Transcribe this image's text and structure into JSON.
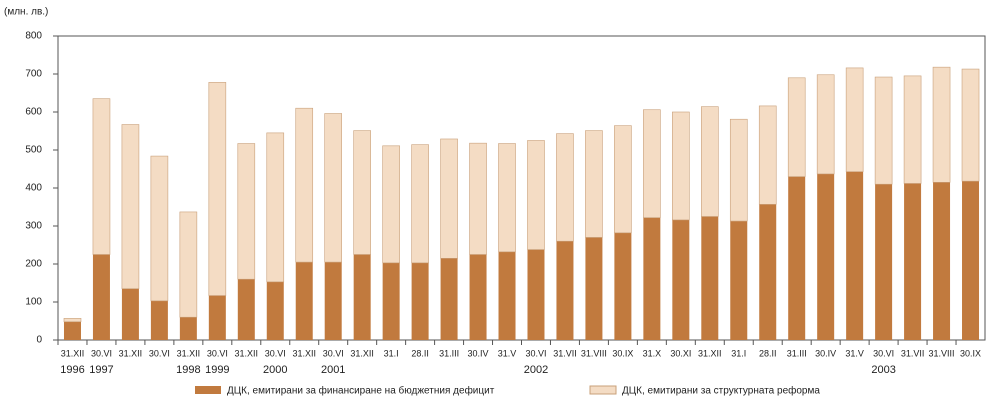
{
  "chart_data": {
    "type": "stacked_bar",
    "y_label": "(млн. лв.)",
    "categories": [
      "31.XII",
      "30.VI",
      "31.XII",
      "30.VI",
      "31.XII",
      "30.VI",
      "31.XII",
      "30.VI",
      "31.XII",
      "30.VI",
      "31.XII",
      "31.I",
      "28.II",
      "31.III",
      "30.IV",
      "31.V",
      "30.VI",
      "31.VII",
      "31.VIII",
      "30.IX",
      "31.X",
      "30.XI",
      "31.XII",
      "31.I",
      "28.II",
      "31.III",
      "30.IV",
      "31.V",
      "30.VI",
      "31.VII",
      "31.VIII",
      "30.IX"
    ],
    "years": [
      "1996",
      "1997",
      null,
      null,
      "1998",
      "1999",
      null,
      "2000",
      null,
      "2001",
      null,
      null,
      null,
      null,
      null,
      null,
      "2002",
      null,
      null,
      null,
      null,
      null,
      null,
      null,
      null,
      null,
      null,
      null,
      "2003",
      null,
      null,
      null
    ],
    "series": [
      {
        "name": "ДЦК, емитирани за финансиране на бюджетния дефицит",
        "color": "#c17a3e",
        "values": [
          48,
          225,
          135,
          103,
          60,
          117,
          160,
          153,
          205,
          205,
          225,
          203,
          203,
          215,
          225,
          232,
          238,
          260,
          270,
          282,
          322,
          316,
          325,
          313,
          357,
          430,
          437,
          443,
          410,
          412,
          415,
          418
        ]
      },
      {
        "name": "ДЦК, емитирани за структурната реформа",
        "color": "#f4dcc4",
        "values": [
          9,
          410,
          432,
          381,
          277,
          561,
          357,
          392,
          405,
          391,
          326,
          308,
          311,
          314,
          293,
          285,
          287,
          283,
          281,
          282,
          284,
          284,
          289,
          268,
          259,
          260,
          261,
          273,
          282,
          283,
          303,
          295
        ]
      }
    ],
    "ylim": [
      0,
      800
    ],
    "yticks": [
      0,
      100,
      200,
      300,
      400,
      500,
      600,
      700,
      800
    ],
    "grid": false
  }
}
